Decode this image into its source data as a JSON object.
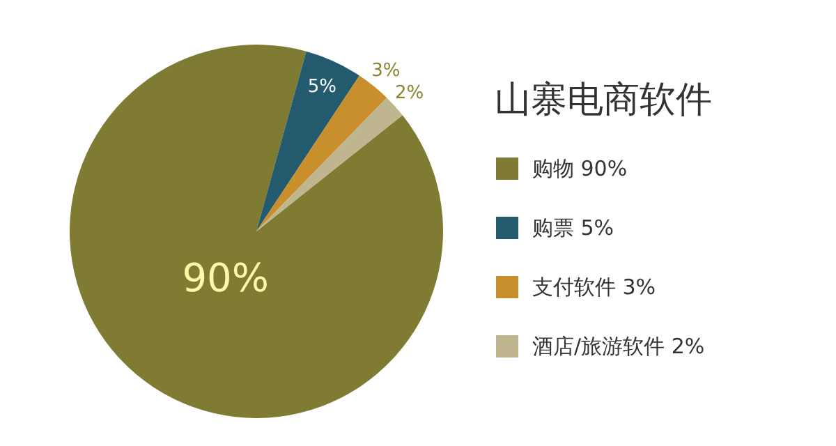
{
  "chart_data": {
    "type": "pie",
    "title": "山寨电商软件",
    "categories": [
      "购物",
      "购票",
      "支付软件",
      "酒店/旅游软件"
    ],
    "values": [
      90,
      5,
      3,
      2
    ],
    "value_labels": [
      "90%",
      "5%",
      "3%",
      "2%"
    ],
    "colors": [
      "#7f7b32",
      "#235a6e",
      "#c98f2c",
      "#bfb690"
    ],
    "legend": "right"
  }
}
